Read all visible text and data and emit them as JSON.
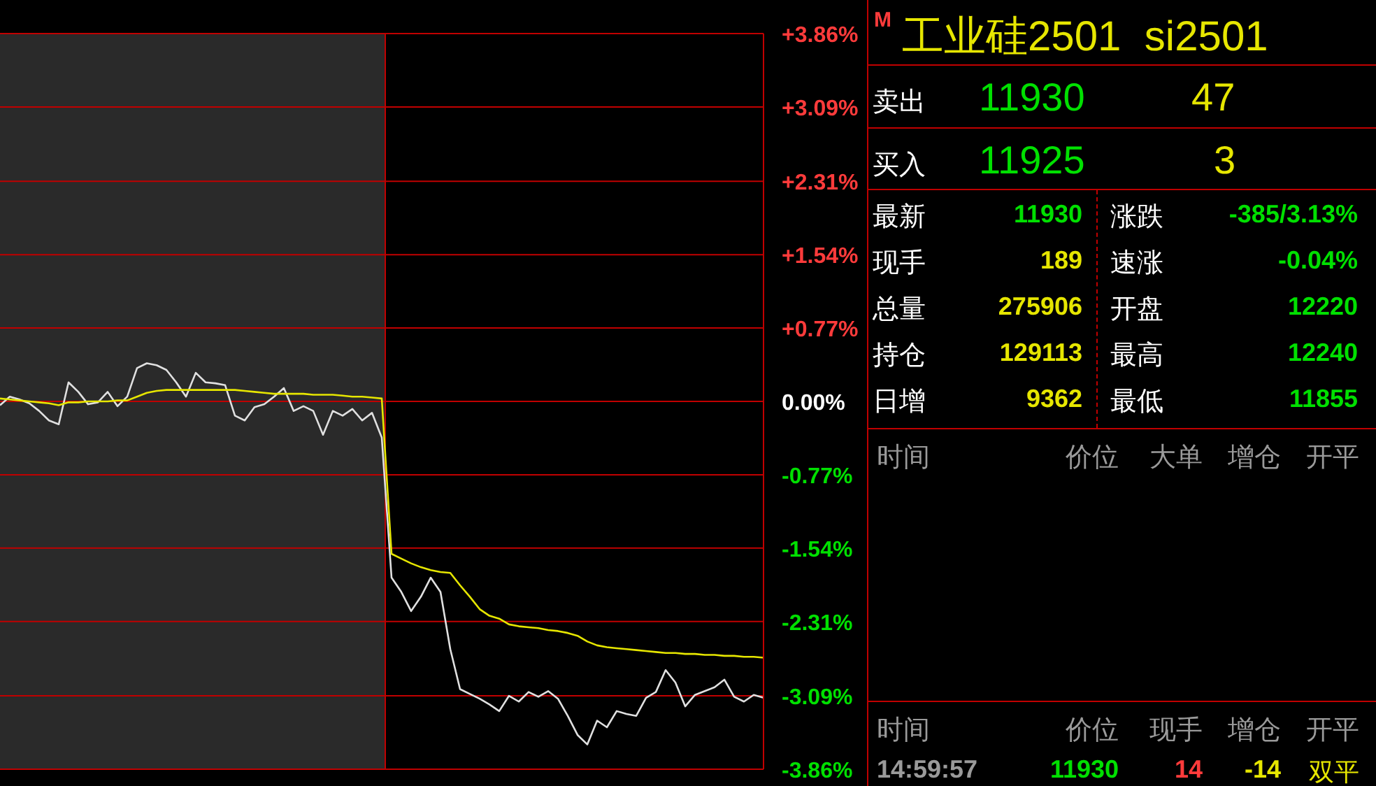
{
  "chart_data": [
    {
      "type": "line",
      "categories": [
        null,
        null,
        null,
        null,
        null,
        null,
        null,
        null,
        null,
        null,
        null,
        null,
        null,
        null,
        null,
        null,
        null,
        null,
        null,
        null,
        null,
        null,
        null,
        null,
        null,
        null,
        null,
        null,
        null,
        null,
        null,
        null,
        null,
        null,
        null,
        null,
        null,
        null,
        null,
        null,
        null,
        null,
        null,
        null,
        null,
        null,
        null,
        null,
        null,
        null,
        null,
        null,
        null,
        null,
        null,
        null,
        null,
        null,
        null,
        null,
        null,
        null,
        null,
        null,
        null,
        null,
        null,
        null,
        null,
        null,
        null,
        null,
        null,
        null,
        null,
        null,
        null,
        null,
        null
      ],
      "series": [
        {
          "color": "#e0e0e0",
          "values": [
            -0.04,
            0.05,
            0.02,
            -0.02,
            -0.1,
            -0.2,
            -0.24,
            0.2,
            0.1,
            -0.03,
            -0.01,
            0.1,
            -0.05,
            0.05,
            0.35,
            0.4,
            0.38,
            0.33,
            0.2,
            0.05,
            0.3,
            0.2,
            0.19,
            0.17,
            -0.15,
            -0.2,
            -0.06,
            -0.03,
            0.05,
            0.14,
            -0.1,
            -0.05,
            -0.1,
            -0.35,
            -0.1,
            -0.15,
            -0.08,
            -0.2,
            -0.12,
            -0.38,
            -1.85,
            -2.0,
            -2.2,
            -2.05,
            -1.85,
            -2.0,
            -2.6,
            -3.02,
            -3.07,
            -3.12,
            -3.18,
            -3.25,
            -3.09,
            -3.15,
            -3.05,
            -3.1,
            -3.04,
            -3.12,
            -3.3,
            -3.5,
            -3.6,
            -3.35,
            -3.42,
            -3.25,
            -3.28,
            -3.3,
            -3.11,
            -3.05,
            -2.82,
            -2.95,
            -3.2,
            -3.08,
            -3.04,
            -3.0,
            -2.92,
            -3.1,
            -3.15,
            -3.08,
            -3.11
          ]
        },
        {
          "color": "#e6e600",
          "values": [
            0.03,
            0.02,
            0.01,
            0.0,
            -0.01,
            -0.02,
            -0.04,
            -0.01,
            -0.01,
            0.0,
            0.0,
            0.0,
            0.01,
            0.01,
            0.05,
            0.09,
            0.11,
            0.12,
            0.12,
            0.12,
            0.12,
            0.12,
            0.12,
            0.12,
            0.12,
            0.11,
            0.1,
            0.09,
            0.08,
            0.08,
            0.08,
            0.08,
            0.07,
            0.07,
            0.07,
            0.06,
            0.05,
            0.05,
            0.04,
            0.03,
            -1.6,
            -1.65,
            -1.7,
            -1.74,
            -1.77,
            -1.79,
            -1.8,
            -1.93,
            -2.05,
            -2.18,
            -2.25,
            -2.28,
            -2.34,
            -2.36,
            -2.37,
            -2.38,
            -2.4,
            -2.41,
            -2.43,
            -2.46,
            -2.52,
            -2.56,
            -2.58,
            -2.59,
            -2.6,
            -2.61,
            -2.62,
            -2.63,
            -2.64,
            -2.64,
            -2.65,
            -2.65,
            -2.66,
            -2.66,
            -2.67,
            -2.67,
            -2.68,
            -2.68,
            -2.69
          ]
        }
      ],
      "ylim": [
        -3.86,
        3.86
      ],
      "yticks": [
        {
          "value": 3.86,
          "label": "+3.86%"
        },
        {
          "value": 3.09,
          "label": "+3.09%"
        },
        {
          "value": 2.31,
          "label": "+2.31%"
        },
        {
          "value": 1.54,
          "label": "+1.54%"
        },
        {
          "value": 0.77,
          "label": "+0.77%"
        },
        {
          "value": 0,
          "label": "0.00%"
        },
        {
          "value": -0.77,
          "label": "-0.77%"
        },
        {
          "value": -1.54,
          "label": "-1.54%"
        },
        {
          "value": -2.31,
          "label": "-2.31%"
        },
        {
          "value": -3.09,
          "label": "-3.09%"
        },
        {
          "value": -3.86,
          "label": "-3.86%"
        }
      ],
      "grid": "y",
      "tick_labels": "y"
    },
    {
      "type": "other",
      "title": "工业硅2501  si2501",
      "annotations": [
        "M",
        "卖出",
        "11930",
        "47",
        "买入",
        "11925",
        "3",
        "最新",
        "11930",
        "涨跌",
        "-385/3.13%",
        "现手",
        "189",
        "速涨",
        "-0.04%",
        "总量",
        "275906",
        "开盘",
        "12220",
        "持仓",
        "129113",
        "最高",
        "12240",
        "日增",
        "9362",
        "最低",
        "11855",
        "时间",
        "价位",
        "大单",
        "增仓",
        "开平",
        "时间",
        "价位",
        "现手",
        "增仓",
        "开平",
        "14:59:57",
        "11930",
        "14",
        "-14",
        "双平"
      ]
    }
  ]
}
